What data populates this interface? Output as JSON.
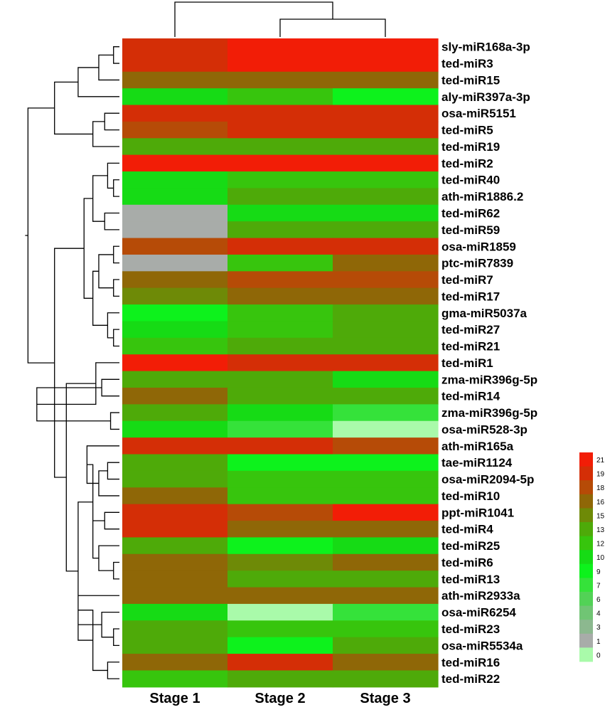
{
  "chart_data": {
    "type": "heatmap",
    "columns": [
      "Stage 1",
      "Stage 2",
      "Stage 3"
    ],
    "rows": [
      "sly-miR168a-3p",
      "ted-miR3",
      "ted-miR15",
      "aly-miR397a-3p",
      "osa-miR5151",
      "ted-miR5",
      "ted-miR19",
      "ted-miR2",
      "ted-miR40",
      "ath-miR1886.2",
      "ted-miR62",
      "ted-miR59",
      "osa-miR1859",
      "ptc-miR7839",
      "ted-miR7",
      "ted-miR17",
      "gma-miR5037a",
      "ted-miR27",
      "ted-miR21",
      "ted-miR1",
      "zma-miR396g-5p",
      "ted-miR14",
      "zma-miR396g-5p",
      "osa-miR528-3p",
      "ath-miR165a",
      "tae-miR1124",
      "osa-miR2094-5p",
      "ted-miR10",
      "ppt-miR1041",
      "ted-miR4",
      "ted-miR25",
      "ted-miR6",
      "ted-miR13",
      "ath-miR2933a",
      "osa-miR6254",
      "ted-miR23",
      "osa-miR5534a",
      "ted-miR16",
      "ted-miR22"
    ],
    "values": [
      [
        19,
        21,
        21
      ],
      [
        19,
        21,
        21
      ],
      [
        16,
        16,
        16
      ],
      [
        10,
        12,
        9
      ],
      [
        19,
        19,
        19
      ],
      [
        18,
        19,
        19
      ],
      [
        13,
        13,
        13
      ],
      [
        21,
        21,
        21
      ],
      [
        10,
        12,
        12
      ],
      [
        10,
        13,
        13
      ],
      [
        1,
        10,
        10
      ],
      [
        1,
        13,
        13
      ],
      [
        18,
        19,
        19
      ],
      [
        1,
        12,
        16
      ],
      [
        16,
        18,
        18
      ],
      [
        15,
        16,
        16
      ],
      [
        8,
        12,
        13
      ],
      [
        10,
        12,
        13
      ],
      [
        12,
        13,
        13
      ],
      [
        21,
        19,
        19
      ],
      [
        13,
        13,
        10
      ],
      [
        16,
        13,
        13
      ],
      [
        13,
        10,
        7
      ],
      [
        10,
        7,
        0
      ],
      [
        19,
        19,
        18
      ],
      [
        13,
        9,
        9
      ],
      [
        13,
        12,
        12
      ],
      [
        16,
        12,
        12
      ],
      [
        19,
        18,
        21
      ],
      [
        19,
        16,
        16
      ],
      [
        13,
        8,
        10
      ],
      [
        16,
        15,
        16
      ],
      [
        16,
        13,
        13
      ],
      [
        16,
        16,
        16
      ],
      [
        10,
        0,
        7
      ],
      [
        13,
        12,
        12
      ],
      [
        13,
        9,
        13
      ],
      [
        16,
        19,
        16
      ],
      [
        12,
        13,
        13
      ]
    ],
    "colorscale": {
      "ticks": [
        21,
        19,
        18,
        16,
        15,
        13,
        12,
        10,
        9,
        7,
        6,
        4,
        3,
        1,
        0
      ],
      "colors": [
        "#f21d06",
        "#d42e06",
        "#b64b07",
        "#8f6707",
        "#6e8a07",
        "#4eaa09",
        "#37c50d",
        "#16db15",
        "#0df21c",
        "#35e23a",
        "#52d256",
        "#70c574",
        "#8cb88f",
        "#a8aca9",
        "#a9faaa"
      ]
    },
    "title": "",
    "xlabel": "",
    "ylabel": ""
  }
}
